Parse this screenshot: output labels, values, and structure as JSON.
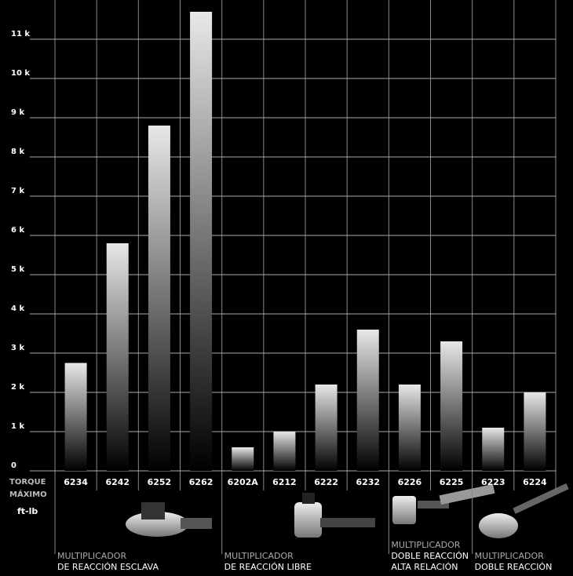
{
  "chart_data": {
    "type": "bar",
    "categories": [
      "6234",
      "6242",
      "6252",
      "6262",
      "6202A",
      "6212",
      "6222",
      "6232",
      "6226",
      "6225",
      "6223",
      "6224"
    ],
    "values": [
      2750,
      5800,
      8800,
      11700,
      600,
      1000,
      2200,
      3600,
      2200,
      3300,
      1100,
      2000
    ],
    "ylim": [
      0,
      12000
    ],
    "yticks": [
      0,
      {
        "value": 1000,
        "label": "1 k"
      },
      {
        "value": 2000,
        "label": "2 k"
      },
      {
        "value": 3000,
        "label": "3 k"
      },
      {
        "value": 4000,
        "label": "4 k"
      },
      {
        "value": 5000,
        "label": "5 k"
      },
      {
        "value": 6000,
        "label": "6 k"
      },
      {
        "value": 7000,
        "label": "7 k"
      },
      {
        "value": 8000,
        "label": "8 k"
      },
      {
        "value": 9000,
        "label": "9 k"
      },
      {
        "value": 10000,
        "label": "10 k"
      },
      {
        "value": 11000,
        "label": "11 k"
      }
    ],
    "grid": true,
    "y_label": [
      "TORQUE",
      "MÁXIMO"
    ],
    "unit": "ft-lb",
    "groups": [
      [
        "MULTIPLICADOR",
        "DE REACCIÓN ESCLAVA"
      ],
      [
        "MULTIPLICADOR",
        "DE REACCIÓN LIBRE"
      ],
      [
        "MULTIPLICADOR",
        "DOBLE REACCIÓN",
        "ALTA RELACIÓN"
      ],
      [
        "MULTIPLICADOR",
        "DOBLE REACCIÓN"
      ]
    ]
  }
}
